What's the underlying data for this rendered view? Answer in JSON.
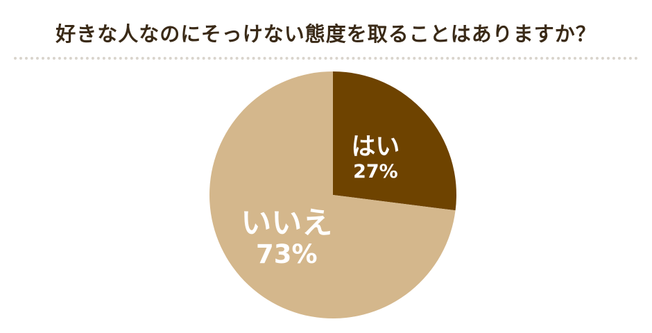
{
  "chart_data": {
    "type": "pie",
    "title": "好きな人なのにそっけない態度を取ることはありますか？",
    "start_angle_deg": 0,
    "direction": "clockwise",
    "slices": [
      {
        "label": "はい",
        "value": 27,
        "value_label": "27%",
        "color": "#6e4300"
      },
      {
        "label": "いいえ",
        "value": 73,
        "value_label": "73%",
        "color": "#d4b78c"
      }
    ]
  }
}
